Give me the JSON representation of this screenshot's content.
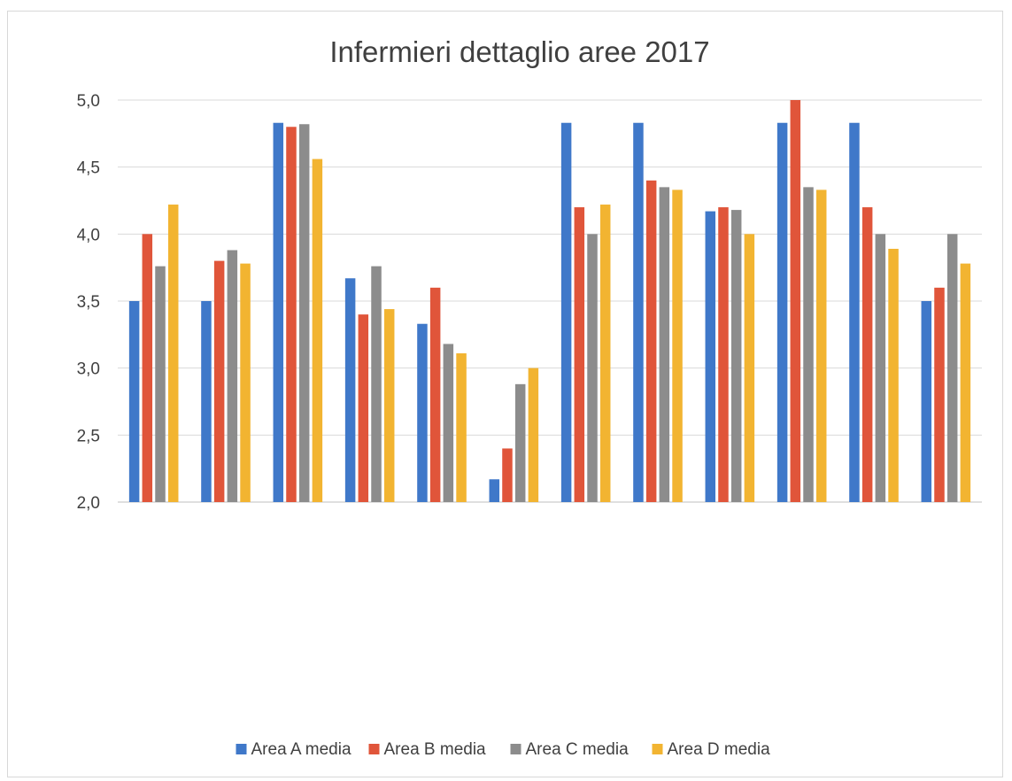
{
  "chart_data": {
    "type": "bar",
    "title": "Infermieri dettaglio aree 2017",
    "xlabel": "",
    "ylabel": "",
    "ylim": [
      2.0,
      5.0
    ],
    "yticks": [
      "2,0",
      "2,5",
      "3,0",
      "3,5",
      "4,0",
      "4,5",
      "5,0"
    ],
    "grid": true,
    "legend_position": "bottom",
    "categories_count": 12,
    "series": [
      {
        "name": "Area A media",
        "color": "#3f78c9",
        "values": [
          3.5,
          3.5,
          4.83,
          3.67,
          3.33,
          2.17,
          4.83,
          4.83,
          4.17,
          4.83,
          4.83,
          3.5
        ]
      },
      {
        "name": "Area B media",
        "color": "#e0553a",
        "values": [
          4.0,
          3.8,
          4.8,
          3.4,
          3.6,
          2.4,
          4.2,
          4.4,
          4.2,
          5.0,
          4.2,
          3.6
        ]
      },
      {
        "name": "Area C media",
        "color": "#8c8c8c",
        "values": [
          3.76,
          3.88,
          4.82,
          3.76,
          3.18,
          2.88,
          4.0,
          4.35,
          4.18,
          4.35,
          4.0,
          4.0
        ]
      },
      {
        "name": "Area D media",
        "color": "#f2b431",
        "values": [
          4.22,
          3.78,
          4.56,
          3.44,
          3.11,
          3.0,
          4.22,
          4.33,
          4.0,
          4.33,
          3.89,
          3.78
        ]
      }
    ]
  }
}
